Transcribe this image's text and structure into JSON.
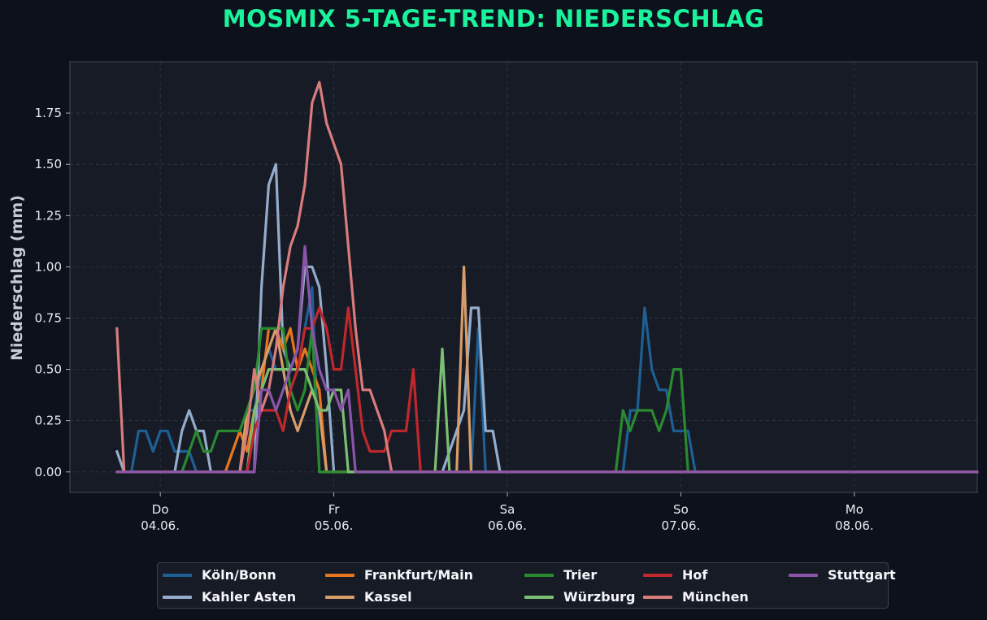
{
  "chart_data": {
    "type": "line",
    "title": "MOSMIX 5-TAGE-TREND: NIEDERSCHLAG",
    "xlabel": "",
    "ylabel": "Niederschlag (mm)",
    "x_unit": "hours from 2020-06-04 00:00",
    "xlim": [
      -12.5,
      113
    ],
    "ylim": [
      -0.1,
      2.0
    ],
    "x_ticks": [
      {
        "x": 0,
        "day": "Do",
        "date": "04.06."
      },
      {
        "x": 24,
        "day": "Fr",
        "date": "05.06."
      },
      {
        "x": 48,
        "day": "Sa",
        "date": "06.06."
      },
      {
        "x": 72,
        "day": "So",
        "date": "07.06."
      },
      {
        "x": 96,
        "day": "Mo",
        "date": "08.06."
      }
    ],
    "y_ticks": [
      "0.00",
      "0.25",
      "0.50",
      "0.75",
      "1.00",
      "1.25",
      "1.50",
      "1.75"
    ],
    "y_tick_values": [
      0,
      0.25,
      0.5,
      0.75,
      1.0,
      1.25,
      1.5,
      1.75
    ],
    "grid": true,
    "legend_placement": "bottom-center",
    "series": [
      {
        "name": "Köln/Bonn",
        "color": "#1f5f94",
        "points": [
          [
            -6,
            0.1
          ],
          [
            -5,
            0
          ],
          [
            -4,
            0
          ],
          [
            -3,
            0.2
          ],
          [
            -2,
            0.2
          ],
          [
            -1,
            0.1
          ],
          [
            0,
            0.2
          ],
          [
            1,
            0.2
          ],
          [
            2,
            0.1
          ],
          [
            3,
            0.1
          ],
          [
            4,
            0.1
          ],
          [
            5,
            0
          ],
          [
            6,
            0
          ],
          [
            9,
            0
          ],
          [
            10,
            0.1
          ],
          [
            11,
            0.2
          ],
          [
            12,
            0.3
          ],
          [
            13,
            0.3
          ],
          [
            14,
            0.5
          ],
          [
            15,
            0.6
          ],
          [
            16,
            0.5
          ],
          [
            17,
            0.5
          ],
          [
            18,
            0.5
          ],
          [
            19,
            0.5
          ],
          [
            20,
            0.7
          ],
          [
            21,
            0.9
          ],
          [
            22,
            0
          ],
          [
            43,
            0
          ],
          [
            44,
            0.7
          ],
          [
            45,
            0
          ],
          [
            64,
            0
          ],
          [
            65,
            0.3
          ],
          [
            66,
            0.3
          ],
          [
            67,
            0.8
          ],
          [
            68,
            0.5
          ],
          [
            69,
            0.4
          ],
          [
            70,
            0.4
          ],
          [
            71,
            0.2
          ],
          [
            72,
            0.2
          ],
          [
            73,
            0.2
          ],
          [
            74,
            0
          ],
          [
            113,
            0
          ]
        ]
      },
      {
        "name": "Kahler Asten",
        "color": "#94acca",
        "points": [
          [
            -6,
            0.1
          ],
          [
            -5,
            0
          ],
          [
            2,
            0
          ],
          [
            3,
            0.2
          ],
          [
            4,
            0.3
          ],
          [
            5,
            0.2
          ],
          [
            6,
            0.2
          ],
          [
            7,
            0
          ],
          [
            13,
            0
          ],
          [
            14,
            0.9
          ],
          [
            15,
            1.4
          ],
          [
            16,
            1.5
          ],
          [
            17,
            0.6
          ],
          [
            18,
            0.5
          ],
          [
            19,
            0.6
          ],
          [
            20,
            1.0
          ],
          [
            21,
            1.0
          ],
          [
            22,
            0.9
          ],
          [
            23,
            0.5
          ],
          [
            24,
            0
          ],
          [
            39,
            0
          ],
          [
            40,
            0.1
          ],
          [
            41,
            0.2
          ],
          [
            42,
            0.3
          ],
          [
            43,
            0.8
          ],
          [
            44,
            0.8
          ],
          [
            45,
            0.2
          ],
          [
            46,
            0.2
          ],
          [
            47,
            0
          ],
          [
            113,
            0
          ]
        ]
      },
      {
        "name": "Frankfurt/Main",
        "color": "#e8761c",
        "points": [
          [
            -6,
            0
          ],
          [
            9,
            0
          ],
          [
            10,
            0.1
          ],
          [
            11,
            0.2
          ],
          [
            12,
            0.1
          ],
          [
            13,
            0.3
          ],
          [
            14,
            0.4
          ],
          [
            15,
            0.7
          ],
          [
            16,
            0.7
          ],
          [
            17,
            0.6
          ],
          [
            18,
            0.7
          ],
          [
            19,
            0.5
          ],
          [
            20,
            0.6
          ],
          [
            21,
            0.5
          ],
          [
            22,
            0.4
          ],
          [
            23,
            0
          ],
          [
            113,
            0
          ]
        ]
      },
      {
        "name": "Kassel",
        "color": "#d89c68",
        "points": [
          [
            -6,
            0
          ],
          [
            11,
            0
          ],
          [
            12,
            0.3
          ],
          [
            13,
            0.4
          ],
          [
            14,
            0.5
          ],
          [
            15,
            0.6
          ],
          [
            16,
            0.7
          ],
          [
            17,
            0.5
          ],
          [
            18,
            0.3
          ],
          [
            19,
            0.2
          ],
          [
            20,
            0.3
          ],
          [
            21,
            0.4
          ],
          [
            22,
            0.3
          ],
          [
            23,
            0
          ],
          [
            41,
            0
          ],
          [
            42,
            1.0
          ],
          [
            43,
            0
          ],
          [
            113,
            0
          ]
        ]
      },
      {
        "name": "Trier",
        "color": "#2a8a30",
        "points": [
          [
            -6,
            0
          ],
          [
            3,
            0
          ],
          [
            4,
            0.1
          ],
          [
            5,
            0.2
          ],
          [
            6,
            0.1
          ],
          [
            7,
            0.1
          ],
          [
            8,
            0.2
          ],
          [
            9,
            0.2
          ],
          [
            10,
            0.2
          ],
          [
            11,
            0.2
          ],
          [
            12,
            0.3
          ],
          [
            13,
            0.4
          ],
          [
            14,
            0.7
          ],
          [
            15,
            0.7
          ],
          [
            16,
            0.7
          ],
          [
            17,
            0.7
          ],
          [
            18,
            0.4
          ],
          [
            19,
            0.3
          ],
          [
            20,
            0.4
          ],
          [
            21,
            0.7
          ],
          [
            22,
            0
          ],
          [
            63,
            0
          ],
          [
            64,
            0.3
          ],
          [
            65,
            0.2
          ],
          [
            66,
            0.3
          ],
          [
            67,
            0.3
          ],
          [
            68,
            0.3
          ],
          [
            69,
            0.2
          ],
          [
            70,
            0.3
          ],
          [
            71,
            0.5
          ],
          [
            72,
            0.5
          ],
          [
            73,
            0
          ],
          [
            113,
            0
          ]
        ]
      },
      {
        "name": "Würzburg",
        "color": "#7cbf72",
        "points": [
          [
            -6,
            0
          ],
          [
            12,
            0
          ],
          [
            13,
            0.3
          ],
          [
            14,
            0.4
          ],
          [
            15,
            0.5
          ],
          [
            16,
            0.5
          ],
          [
            17,
            0.5
          ],
          [
            18,
            0.5
          ],
          [
            19,
            0.5
          ],
          [
            20,
            0.5
          ],
          [
            21,
            0.4
          ],
          [
            22,
            0.3
          ],
          [
            23,
            0.3
          ],
          [
            24,
            0.4
          ],
          [
            25,
            0.4
          ],
          [
            26,
            0
          ],
          [
            38,
            0
          ],
          [
            39,
            0.6
          ],
          [
            40,
            0
          ],
          [
            113,
            0
          ]
        ]
      },
      {
        "name": "Hof",
        "color": "#c0282c",
        "points": [
          [
            -6,
            0
          ],
          [
            12,
            0
          ],
          [
            13,
            0.2
          ],
          [
            14,
            0.3
          ],
          [
            15,
            0.3
          ],
          [
            16,
            0.3
          ],
          [
            17,
            0.2
          ],
          [
            18,
            0.4
          ],
          [
            19,
            0.5
          ],
          [
            20,
            0.7
          ],
          [
            21,
            0.7
          ],
          [
            22,
            0.8
          ],
          [
            23,
            0.7
          ],
          [
            24,
            0.5
          ],
          [
            25,
            0.5
          ],
          [
            26,
            0.8
          ],
          [
            27,
            0.5
          ],
          [
            28,
            0.2
          ],
          [
            29,
            0.1
          ],
          [
            30,
            0.1
          ],
          [
            31,
            0.1
          ],
          [
            32,
            0.2
          ],
          [
            33,
            0.2
          ],
          [
            34,
            0.2
          ],
          [
            35,
            0.5
          ],
          [
            36,
            0
          ],
          [
            113,
            0
          ]
        ]
      },
      {
        "name": "München",
        "color": "#d97c7c",
        "points": [
          [
            -6,
            0.7
          ],
          [
            -5,
            0
          ],
          [
            11,
            0
          ],
          [
            12,
            0.2
          ],
          [
            13,
            0.5
          ],
          [
            14,
            0.3
          ],
          [
            15,
            0.4
          ],
          [
            16,
            0.6
          ],
          [
            17,
            0.9
          ],
          [
            18,
            1.1
          ],
          [
            19,
            1.2
          ],
          [
            20,
            1.4
          ],
          [
            21,
            1.8
          ],
          [
            22,
            1.9
          ],
          [
            23,
            1.7
          ],
          [
            24,
            1.6
          ],
          [
            25,
            1.5
          ],
          [
            26,
            1.1
          ],
          [
            27,
            0.7
          ],
          [
            28,
            0.4
          ],
          [
            29,
            0.4
          ],
          [
            30,
            0.3
          ],
          [
            31,
            0.2
          ],
          [
            32,
            0
          ],
          [
            113,
            0
          ]
        ]
      },
      {
        "name": "Stuttgart",
        "color": "#8a55a8",
        "points": [
          [
            -6,
            0
          ],
          [
            13,
            0
          ],
          [
            14,
            0.4
          ],
          [
            15,
            0.4
          ],
          [
            16,
            0.3
          ],
          [
            17,
            0.4
          ],
          [
            18,
            0.5
          ],
          [
            19,
            0.6
          ],
          [
            20,
            1.1
          ],
          [
            21,
            0.7
          ],
          [
            22,
            0.5
          ],
          [
            23,
            0.4
          ],
          [
            24,
            0.4
          ],
          [
            25,
            0.3
          ],
          [
            26,
            0.4
          ],
          [
            27,
            0
          ],
          [
            113,
            0
          ]
        ]
      }
    ]
  }
}
